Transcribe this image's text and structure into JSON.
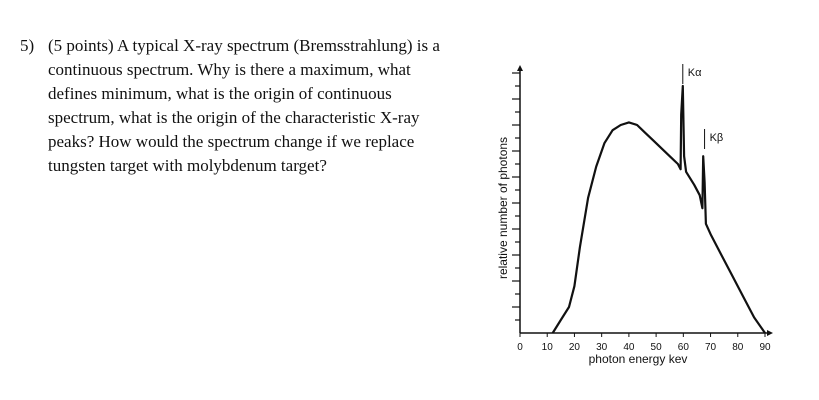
{
  "question": {
    "number": "5)",
    "lines": [
      "(5 points) A typical X-ray spectrum (Bremsstrahlung) is a",
      "continuous spectrum. Why is there a maximum, what",
      "defines minimum, what is the origin of continuous",
      "spectrum, what is the origin of the characteristic X-ray",
      "peaks? How would the spectrum change if we replace",
      "tungsten target with molybdenum target?"
    ]
  },
  "chart_data": {
    "type": "line",
    "title": "",
    "xlabel": "photon energy kev",
    "ylabel": "relative number of photons",
    "xlim": [
      0,
      90
    ],
    "ylim": [
      0,
      100
    ],
    "x_ticks": [
      0,
      10,
      20,
      30,
      40,
      50,
      60,
      70,
      80,
      90
    ],
    "x_tick_labels": [
      "0",
      "10",
      "20",
      "30",
      "40",
      "50",
      "60",
      "70",
      "80",
      "90"
    ],
    "grid": false,
    "series": [
      {
        "x": [
          12,
          15,
          18,
          20,
          22,
          25,
          28,
          31,
          34,
          37,
          40,
          43,
          46,
          49,
          52,
          55,
          58,
          59,
          59.2,
          59.8,
          60.3,
          61,
          64,
          66,
          67,
          67.3,
          67.8,
          68.3,
          70,
          74,
          78,
          82,
          86,
          90
        ],
        "y": [
          0,
          5,
          10,
          18,
          33,
          52,
          64,
          73,
          78,
          80,
          81,
          80,
          77,
          74,
          71,
          68,
          65,
          63,
          84,
          95,
          68,
          62,
          57,
          53,
          48,
          68,
          58,
          42,
          38,
          30,
          22,
          14,
          6,
          0
        ]
      }
    ],
    "annotations": [
      {
        "text": "Kα",
        "x": 59.8,
        "y": 95
      },
      {
        "text": "Kβ",
        "x": 67.8,
        "y": 70
      }
    ]
  }
}
